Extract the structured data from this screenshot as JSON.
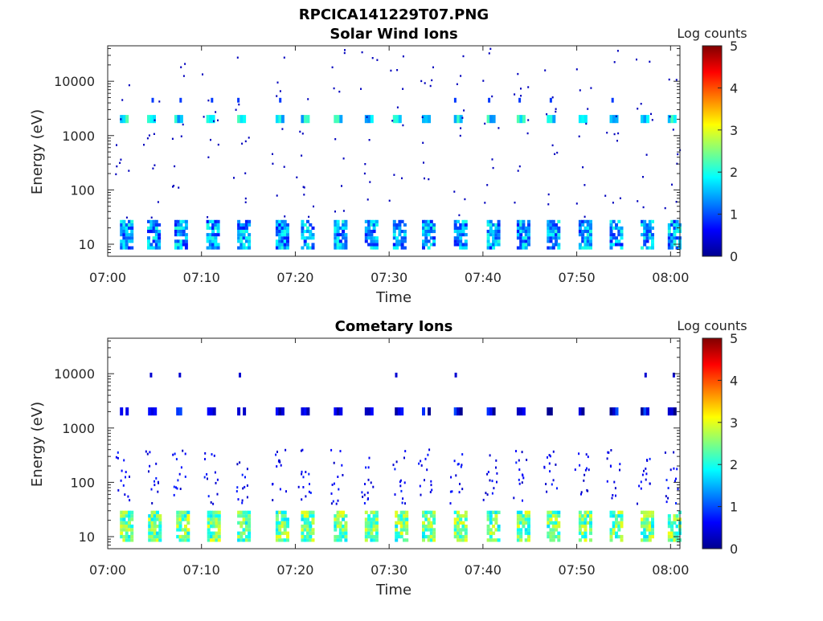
{
  "figure": {
    "title": "RPCICA141229T07.PNG"
  },
  "chart_data": [
    {
      "type": "heatmap",
      "title": "Solar Wind Ions",
      "xlabel": "Time",
      "ylabel": "Energy (eV)",
      "x_range": [
        "07:00",
        "08:01"
      ],
      "y_range": [
        6,
        45000
      ],
      "y_scale": "log",
      "x_ticks": [
        "07:00",
        "07:10",
        "07:20",
        "07:30",
        "07:40",
        "07:50",
        "08:00"
      ],
      "y_ticks": [
        "10",
        "100",
        "1000",
        "10000"
      ],
      "colorbar": {
        "label": "Log counts",
        "ticks": [
          "0",
          "1",
          "2",
          "3",
          "4",
          "5"
        ],
        "range": [
          0,
          5
        ],
        "colormap": "jet"
      },
      "grid": false,
      "features": {
        "scan_times_min": [
          1.3,
          4.2,
          7.1,
          10.5,
          13.8,
          17.9,
          20.6,
          24.1,
          27.4,
          30.4,
          33.5,
          36.9,
          40.4,
          43.6,
          46.8,
          50.2,
          53.5,
          56.8,
          59.7
        ],
        "low_energy_band_eV": [
          8,
          28
        ],
        "low_energy_log_counts": 1.4,
        "beam_energy_eV": 2000,
        "beam_log_counts": 1.8,
        "secondary_band_eV": 4500,
        "secondary_log_counts": 0.9,
        "scatter_log_counts": 0.3
      }
    },
    {
      "type": "heatmap",
      "title": "Cometary Ions",
      "xlabel": "Time",
      "ylabel": "Energy (eV)",
      "x_range": [
        "07:00",
        "08:01"
      ],
      "y_range": [
        6,
        45000
      ],
      "y_scale": "log",
      "x_ticks": [
        "07:00",
        "07:10",
        "07:20",
        "07:30",
        "07:40",
        "07:50",
        "08:00"
      ],
      "y_ticks": [
        "10",
        "100",
        "1000",
        "10000"
      ],
      "colorbar": {
        "label": "Log counts",
        "ticks": [
          "0",
          "1",
          "2",
          "3",
          "4",
          "5"
        ],
        "range": [
          0,
          5
        ],
        "colormap": "jet"
      },
      "grid": false,
      "features": {
        "scan_times_min": [
          1.3,
          4.3,
          7.3,
          10.6,
          13.8,
          17.9,
          20.6,
          24.1,
          27.4,
          30.6,
          33.5,
          36.9,
          40.4,
          43.6,
          46.8,
          50.2,
          53.5,
          56.8,
          59.7
        ],
        "low_energy_band_eV": [
          8,
          30
        ],
        "low_energy_log_counts": 2.4,
        "mid_energy_scatter_eV": [
          40,
          400
        ],
        "beam_energy_eV": 2000,
        "beam_log_counts": 0.5,
        "high_energy_eV": 9500,
        "high_energy_log_counts": 0.4
      }
    }
  ]
}
